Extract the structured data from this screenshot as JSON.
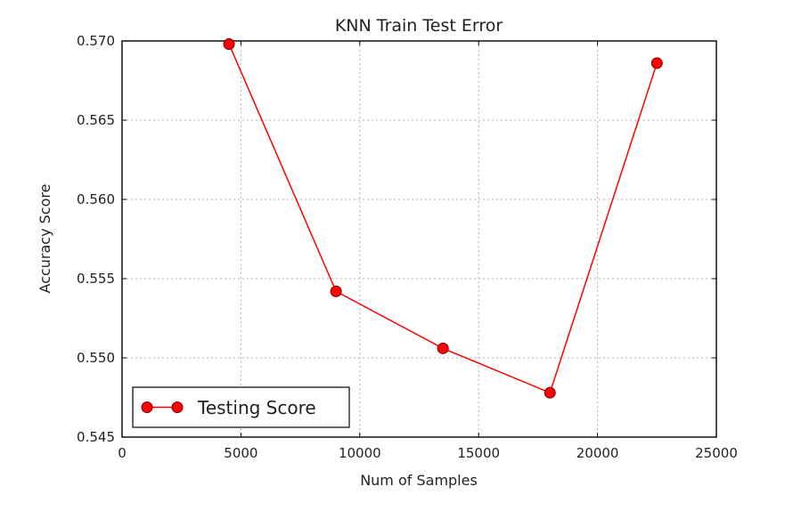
{
  "chart_data": {
    "type": "line",
    "title": "KNN Train Test Error",
    "xlabel": "Num of Samples",
    "ylabel": "Accuracy Score",
    "xlim": [
      0,
      25000
    ],
    "ylim": [
      0.545,
      0.57
    ],
    "xticks": [
      0,
      5000,
      10000,
      15000,
      20000,
      25000
    ],
    "xtick_labels": [
      "0",
      "5000",
      "10000",
      "15000",
      "20000",
      "25000"
    ],
    "yticks": [
      0.545,
      0.55,
      0.555,
      0.56,
      0.565,
      0.57
    ],
    "ytick_labels": [
      "0.545",
      "0.550",
      "0.555",
      "0.560",
      "0.565",
      "0.570"
    ],
    "grid": true,
    "legend_position": "lower-left",
    "series": [
      {
        "name": "Testing Score",
        "color": "#ff0000",
        "marker": "circle",
        "x": [
          4500,
          9000,
          13500,
          18000,
          22500
        ],
        "y": [
          0.5698,
          0.5542,
          0.5506,
          0.5478,
          0.5686
        ]
      }
    ]
  }
}
